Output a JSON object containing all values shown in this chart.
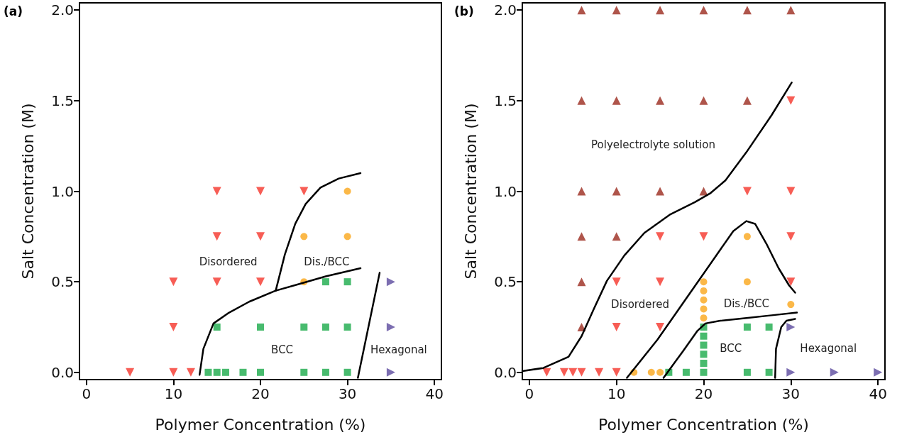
{
  "chart_data": [
    {
      "type": "scatter",
      "title": "(a)",
      "xlabel": "Polymer Concentration (%)",
      "ylabel": "Salt Concentration (M)",
      "xlim": [
        -0.8,
        40.8
      ],
      "ylim": [
        -0.04,
        2.04
      ],
      "xticks": [
        0,
        10,
        20,
        30,
        40
      ],
      "yticks": [
        {
          "value": 0,
          "label": "0.0"
        },
        {
          "value": 0.5,
          "label": "0.5"
        },
        {
          "value": 1,
          "label": "1.0"
        },
        {
          "value": 1.5,
          "label": "1.5"
        },
        {
          "value": 2,
          "label": "2.0"
        }
      ],
      "grid": false,
      "series": [
        {
          "marker": "triangle-down",
          "color": "#f5352a",
          "x": [
            5,
            10,
            12,
            10,
            10,
            15,
            20,
            15,
            20,
            15,
            20,
            25
          ],
          "values": [
            0,
            0,
            0,
            0.25,
            0.5,
            0.5,
            0.5,
            0.75,
            0.75,
            1,
            1,
            1
          ]
        },
        {
          "marker": "circle",
          "color": "#faa61a",
          "x": [
            30,
            25,
            30,
            25
          ],
          "values": [
            1,
            0.75,
            0.75,
            0.5
          ]
        },
        {
          "marker": "square",
          "color": "#1aaa4a",
          "x": [
            14,
            15,
            16,
            18,
            20,
            25,
            27.5,
            30,
            15,
            20,
            25,
            27.5,
            30,
            27.5,
            30
          ],
          "values": [
            0,
            0,
            0,
            0,
            0,
            0,
            0,
            0,
            0.25,
            0.25,
            0.25,
            0.25,
            0.25,
            0.5,
            0.5
          ]
        },
        {
          "marker": "triangle-right",
          "color": "#5b4a9e",
          "x": [
            35,
            35,
            35
          ],
          "values": [
            0,
            0.25,
            0.5
          ]
        },
        {
          "type": "line",
          "marker": "none",
          "line_style": "solid",
          "color": "#000000",
          "x": [
            13.0,
            13.44,
            14.6,
            16.4,
            18.7,
            21.7,
            24.6,
            27.5,
            31.5
          ],
          "values": [
            -0.014,
            0.13,
            0.27,
            0.33,
            0.39,
            0.45,
            0.49,
            0.53,
            0.575
          ]
        },
        {
          "type": "line",
          "marker": "none",
          "line_style": "solid",
          "color": "#000000",
          "x": [
            21.75,
            22.8,
            24.0,
            25.2,
            26.9,
            29.0,
            31.5
          ],
          "values": [
            0.45,
            0.65,
            0.82,
            0.93,
            1.02,
            1.07,
            1.1
          ]
        },
        {
          "type": "line",
          "marker": "none",
          "line_style": "solid",
          "color": "#000000",
          "x": [
            31.2,
            33.7
          ],
          "values": [
            -0.03,
            0.55
          ]
        }
      ],
      "annotations": [
        "Disordered",
        "Dis./BCC",
        "BCC",
        "Hexagonal"
      ]
    },
    {
      "type": "scatter",
      "title": "(b)",
      "xlabel": "Polymer Concentration (%)",
      "ylabel": "Salt Concentration (M)",
      "xlim": [
        -0.8,
        40.8
      ],
      "ylim": [
        -0.04,
        2.04
      ],
      "xticks": [
        0,
        10,
        20,
        30,
        40
      ],
      "yticks": [
        {
          "value": 0,
          "label": "0.0"
        },
        {
          "value": 0.5,
          "label": "0.5"
        },
        {
          "value": 1,
          "label": "1.0"
        },
        {
          "value": 1.5,
          "label": "1.5"
        },
        {
          "value": 2,
          "label": "2.0"
        }
      ],
      "grid": false,
      "series": [
        {
          "marker": "triangle",
          "color": "#9b2a1e",
          "x": [
            6,
            10,
            15,
            20,
            25,
            30,
            6,
            10,
            15,
            20,
            25,
            6,
            10,
            15,
            20,
            6,
            10,
            6,
            6
          ],
          "values": [
            2,
            2,
            2,
            2,
            2,
            2,
            1.5,
            1.5,
            1.5,
            1.5,
            1.5,
            1,
            1,
            1,
            1,
            0.75,
            0.75,
            0.5,
            0.25
          ]
        },
        {
          "marker": "triangle-down",
          "color": "#f5352a",
          "x": [
            30,
            25,
            30,
            15,
            20,
            30,
            10,
            15,
            30,
            10,
            15,
            2,
            4,
            5,
            6,
            8,
            10
          ],
          "values": [
            1.5,
            1,
            1,
            0.75,
            0.75,
            0.75,
            0.5,
            0.5,
            0.5,
            0.25,
            0.25,
            0,
            0,
            0,
            0,
            0,
            0
          ]
        },
        {
          "marker": "circle",
          "color": "#faa61a",
          "x": [
            12,
            14,
            15,
            20,
            20,
            20,
            20,
            20,
            25,
            25,
            30
          ],
          "values": [
            0,
            0,
            0,
            0.5,
            0.45,
            0.4,
            0.35,
            0.3,
            0.75,
            0.5,
            0.375
          ]
        },
        {
          "marker": "square",
          "color": "#1aaa4a",
          "x": [
            16,
            18,
            20,
            25,
            27.5,
            20,
            20,
            20,
            20,
            20,
            25,
            27.5
          ],
          "values": [
            0,
            0,
            0,
            0,
            0,
            0.25,
            0.2,
            0.15,
            0.1,
            0.05,
            0.25,
            0.25
          ]
        },
        {
          "marker": "triangle-right",
          "color": "#5b4a9e",
          "x": [
            30,
            30,
            35,
            40
          ],
          "values": [
            0.25,
            0,
            0,
            0
          ]
        },
        {
          "type": "line",
          "marker": "none",
          "line_style": "solid",
          "color": "#000000",
          "x": [
            -0.8,
            1.6,
            4.5,
            6.0,
            7.4,
            8.9,
            10.9,
            13.2,
            16.1,
            19.0,
            20.8,
            22.5,
            24.9,
            27.8,
            30.1
          ],
          "values": [
            0.007,
            0.024,
            0.086,
            0.2,
            0.35,
            0.505,
            0.645,
            0.77,
            0.87,
            0.94,
            0.99,
            1.06,
            1.215,
            1.42,
            1.6
          ]
        },
        {
          "type": "line",
          "marker": "none",
          "line_style": "solid",
          "color": "#000000",
          "x": [
            11.2,
            14.7,
            17.6,
            20.5,
            23.4,
            24.9,
            25.9,
            27.2,
            28.6,
            29.8,
            30.5
          ],
          "values": [
            -0.03,
            0.18,
            0.38,
            0.58,
            0.78,
            0.835,
            0.82,
            0.71,
            0.575,
            0.48,
            0.44
          ]
        },
        {
          "type": "line",
          "marker": "none",
          "line_style": "solid",
          "color": "#000000",
          "x": [
            15.4,
            17.6,
            19.3,
            20.2,
            21.9,
            24.9,
            27.8,
            30.7
          ],
          "values": [
            -0.03,
            0.115,
            0.23,
            0.27,
            0.285,
            0.3,
            0.315,
            0.33
          ]
        },
        {
          "type": "line",
          "marker": "none",
          "line_style": "solid",
          "color": "#000000",
          "x": [
            28.2,
            28.3,
            28.9,
            29.5,
            30.5
          ],
          "values": [
            -0.03,
            0.13,
            0.25,
            0.285,
            0.295
          ]
        }
      ],
      "annotations": [
        "Polyelectrolyte solution",
        "Disordered",
        "Dis./BCC",
        "BCC",
        "Hexagonal"
      ]
    }
  ]
}
